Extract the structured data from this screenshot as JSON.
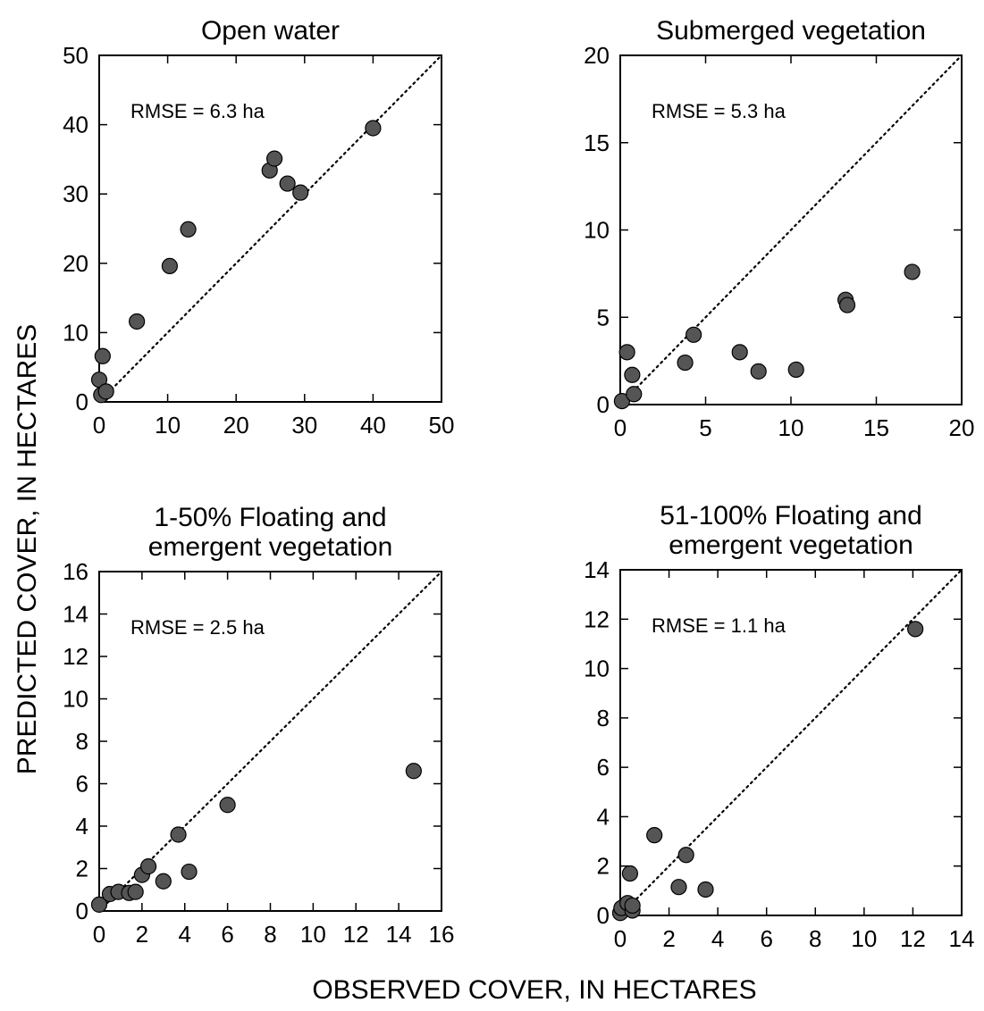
{
  "figure": {
    "xlabel": "OBSERVED COVER, IN HECTARES",
    "ylabel": "PREDICTED COVER, IN HECTARES"
  },
  "chart_data": [
    {
      "type": "scatter",
      "title": [
        "Open water"
      ],
      "annotation": "RMSE = 6.3 ha",
      "xlim": [
        0,
        50
      ],
      "ylim": [
        0,
        50
      ],
      "xticks": [
        0,
        10,
        20,
        30,
        40,
        50
      ],
      "yticks": [
        0,
        10,
        20,
        30,
        40,
        50
      ],
      "reference_line": "1:1 dotted",
      "points": [
        {
          "x": 0.0,
          "y": 3.2
        },
        {
          "x": 0.3,
          "y": 1.0
        },
        {
          "x": 0.5,
          "y": 6.6
        },
        {
          "x": 1.0,
          "y": 1.5
        },
        {
          "x": 5.5,
          "y": 11.6
        },
        {
          "x": 10.3,
          "y": 19.6
        },
        {
          "x": 13.0,
          "y": 24.9
        },
        {
          "x": 24.9,
          "y": 33.4
        },
        {
          "x": 25.6,
          "y": 35.1
        },
        {
          "x": 27.5,
          "y": 31.5
        },
        {
          "x": 29.4,
          "y": 30.2
        },
        {
          "x": 40.0,
          "y": 39.5
        }
      ]
    },
    {
      "type": "scatter",
      "title": [
        "Submerged vegetation"
      ],
      "annotation": "RMSE = 5.3 ha",
      "xlim": [
        0,
        20
      ],
      "ylim": [
        0,
        20
      ],
      "xticks": [
        0,
        5,
        10,
        15,
        20
      ],
      "yticks": [
        0,
        5,
        10,
        15,
        20
      ],
      "reference_line": "1:1 dotted",
      "points": [
        {
          "x": 0.1,
          "y": 0.2
        },
        {
          "x": 0.4,
          "y": 3.0
        },
        {
          "x": 0.7,
          "y": 1.7
        },
        {
          "x": 0.8,
          "y": 0.6
        },
        {
          "x": 3.8,
          "y": 2.4
        },
        {
          "x": 4.3,
          "y": 4.0
        },
        {
          "x": 7.0,
          "y": 3.0
        },
        {
          "x": 8.1,
          "y": 1.9
        },
        {
          "x": 10.3,
          "y": 2.0
        },
        {
          "x": 13.2,
          "y": 6.0
        },
        {
          "x": 13.3,
          "y": 5.7
        },
        {
          "x": 17.1,
          "y": 7.6
        }
      ]
    },
    {
      "type": "scatter",
      "title": [
        "1-50% Floating and",
        "emergent vegetation"
      ],
      "annotation": "RMSE = 2.5 ha",
      "xlim": [
        0,
        16
      ],
      "ylim": [
        0,
        16
      ],
      "xticks": [
        0,
        2,
        4,
        6,
        8,
        10,
        12,
        14,
        16
      ],
      "yticks": [
        0,
        2,
        4,
        6,
        8,
        10,
        12,
        14,
        16
      ],
      "reference_line": "1:1 dotted",
      "points": [
        {
          "x": 0.0,
          "y": 0.3
        },
        {
          "x": 0.5,
          "y": 0.8
        },
        {
          "x": 0.9,
          "y": 0.9
        },
        {
          "x": 1.4,
          "y": 0.85
        },
        {
          "x": 1.7,
          "y": 0.9
        },
        {
          "x": 2.0,
          "y": 1.7
        },
        {
          "x": 2.3,
          "y": 2.1
        },
        {
          "x": 3.0,
          "y": 1.4
        },
        {
          "x": 3.7,
          "y": 3.6
        },
        {
          "x": 4.2,
          "y": 1.85
        },
        {
          "x": 6.0,
          "y": 5.0
        },
        {
          "x": 14.7,
          "y": 6.6
        }
      ]
    },
    {
      "type": "scatter",
      "title": [
        "51-100% Floating and",
        "emergent vegetation"
      ],
      "annotation": "RMSE = 1.1 ha",
      "xlim": [
        0,
        14
      ],
      "ylim": [
        0,
        14
      ],
      "xticks": [
        0,
        2,
        4,
        6,
        8,
        10,
        12,
        14
      ],
      "yticks": [
        0,
        2,
        4,
        6,
        8,
        10,
        12,
        14
      ],
      "reference_line": "1:1 dotted",
      "points": [
        {
          "x": 0.0,
          "y": 0.1
        },
        {
          "x": 0.05,
          "y": 0.3
        },
        {
          "x": 0.3,
          "y": 0.5
        },
        {
          "x": 0.4,
          "y": 1.7
        },
        {
          "x": 0.5,
          "y": 0.2
        },
        {
          "x": 0.5,
          "y": 0.4
        },
        {
          "x": 1.4,
          "y": 3.25
        },
        {
          "x": 2.4,
          "y": 1.15
        },
        {
          "x": 2.7,
          "y": 2.45
        },
        {
          "x": 3.5,
          "y": 1.05
        },
        {
          "x": 12.1,
          "y": 11.6
        }
      ]
    }
  ],
  "colors": {
    "marker_fill": "#555555",
    "marker_stroke": "#000000",
    "axis": "#000000"
  }
}
